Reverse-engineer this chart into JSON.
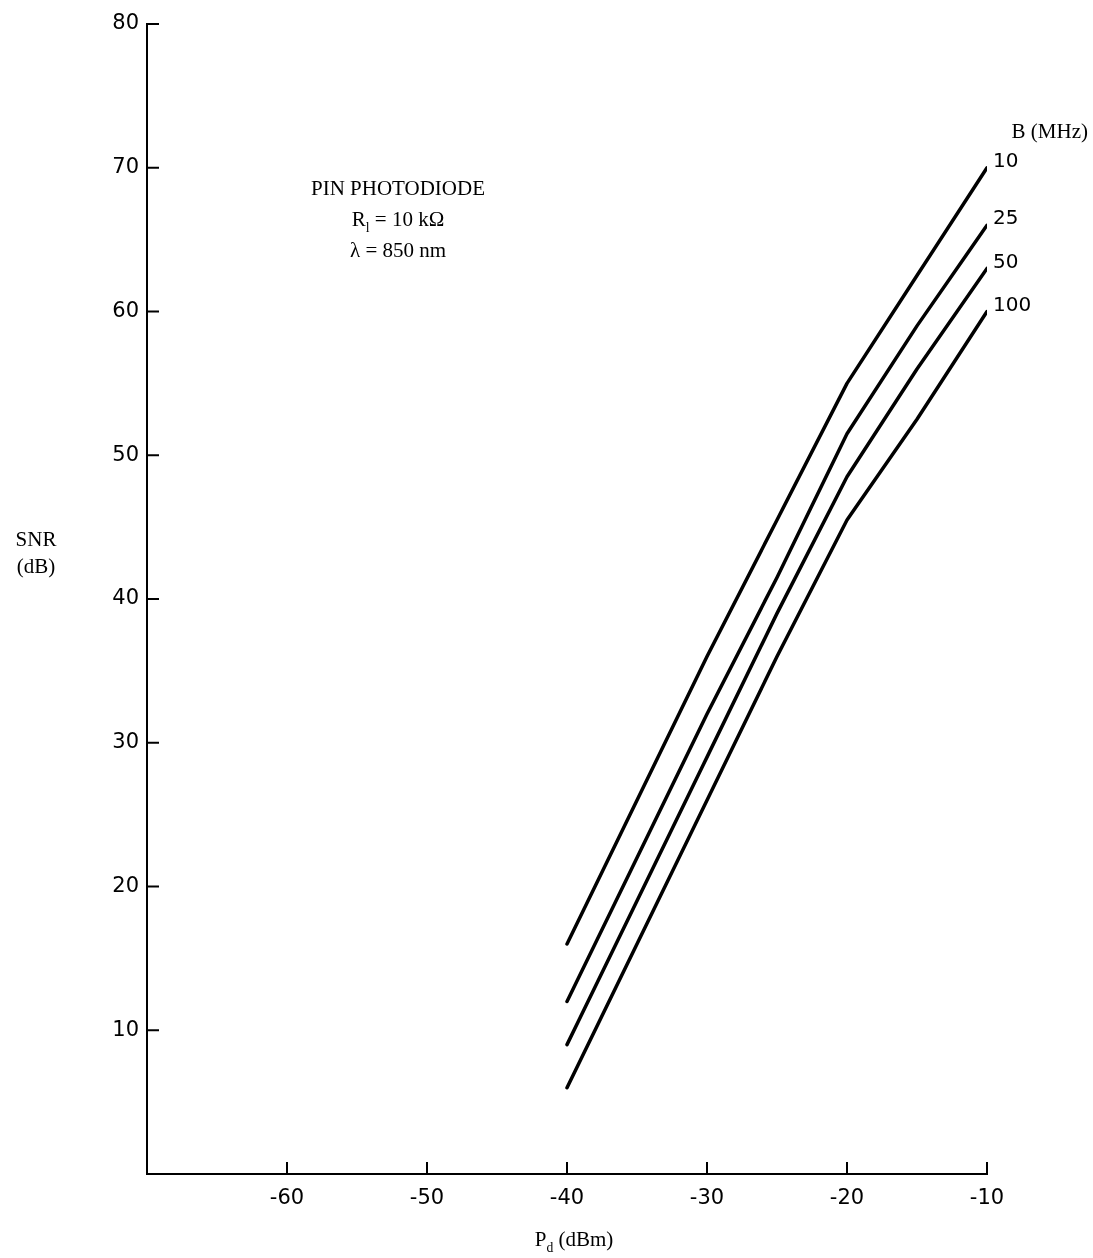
{
  "chart_data": {
    "type": "line",
    "x": [
      -40,
      -30,
      -25,
      -20,
      -15,
      -10
    ],
    "series": [
      {
        "name": "10",
        "color": "#000000",
        "values": [
          16,
          36,
          45.5,
          55,
          62.5,
          70
        ]
      },
      {
        "name": "25",
        "color": "#000000",
        "values": [
          12,
          32,
          41.5,
          51.5,
          59,
          66
        ]
      },
      {
        "name": "50",
        "color": "#000000",
        "values": [
          9,
          29,
          39,
          48.5,
          56,
          63
        ]
      },
      {
        "name": "100",
        "color": "#000000",
        "values": [
          6,
          26,
          36,
          45.5,
          52.5,
          60
        ]
      }
    ],
    "xlabel": "P$_{d}$ (dBm)",
    "ylabel": "SNR (dB)",
    "legend_title": "B (MHz)",
    "annotations": [
      "PIN PHOTODIODE",
      "R$_{l}$ = 10 kΩ",
      "λ = 850 nm"
    ],
    "xlim": [
      -70,
      -10
    ],
    "xticks": [
      -60,
      -50,
      -40,
      -30,
      -20,
      -10
    ],
    "ylim": [
      0,
      80
    ],
    "yticks": [
      10,
      20,
      30,
      40,
      50,
      60,
      70,
      80
    ],
    "grid": false,
    "legend": false,
    "marker": "none",
    "line_style": "solid"
  }
}
